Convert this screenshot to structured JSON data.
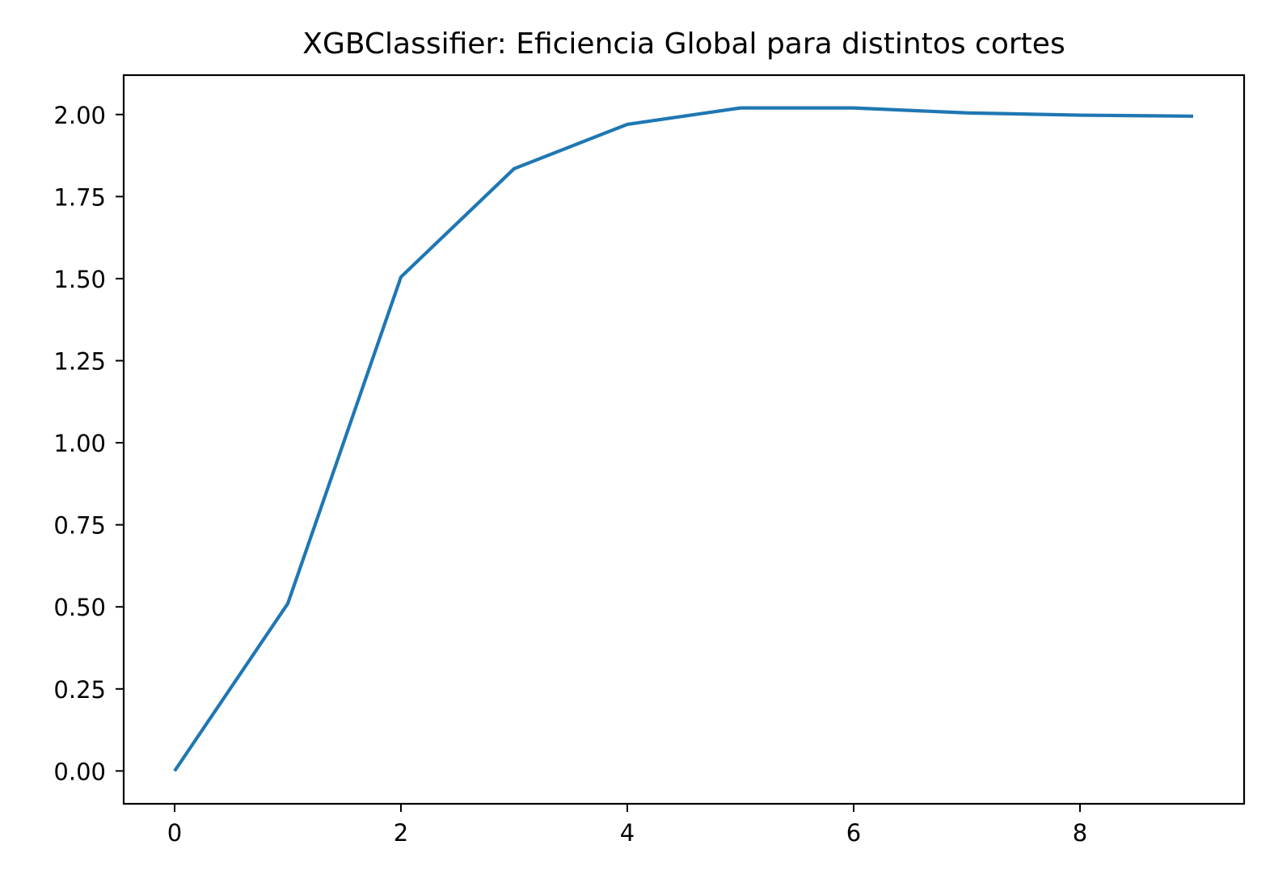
{
  "chart_data": {
    "type": "line",
    "title": "XGBClassifier: Eficiencia Global para distintos cortes",
    "xlabel": "",
    "ylabel": "",
    "xlim": [
      -0.45,
      9.45
    ],
    "ylim": [
      -0.1,
      2.12
    ],
    "xticks": [
      0,
      2,
      4,
      6,
      8
    ],
    "xtick_labels": [
      "0",
      "2",
      "4",
      "6",
      "8"
    ],
    "yticks": [
      0.0,
      0.25,
      0.5,
      0.75,
      1.0,
      1.25,
      1.5,
      1.75,
      2.0
    ],
    "ytick_labels": [
      "0.00",
      "0.25",
      "0.50",
      "0.75",
      "1.00",
      "1.25",
      "1.50",
      "1.75",
      "2.00"
    ],
    "grid": false,
    "legend": false,
    "series": [
      {
        "color": "#1f77b4",
        "x": [
          0,
          1,
          2,
          3,
          4,
          5,
          6,
          7,
          8,
          9
        ],
        "y": [
          0.0,
          0.51,
          1.505,
          1.835,
          1.97,
          2.02,
          2.02,
          2.005,
          1.998,
          1.995
        ]
      }
    ]
  }
}
